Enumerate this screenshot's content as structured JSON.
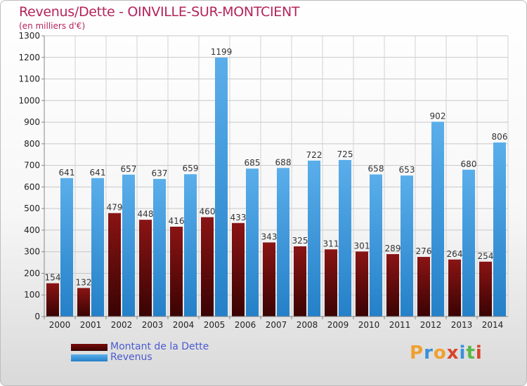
{
  "chart_data": {
    "type": "bar",
    "title": "Revenus/Dette - OINVILLE-SUR-MONTCIENT",
    "subtitle": "(en milliers d'€)",
    "categories": [
      "2000",
      "2001",
      "2002",
      "2003",
      "2004",
      "2005",
      "2006",
      "2007",
      "2008",
      "2009",
      "2010",
      "2011",
      "2012",
      "2013",
      "2014"
    ],
    "series": [
      {
        "name": "Montant de la Dette",
        "color": "#7a0a0a",
        "values": [
          154,
          132,
          479,
          448,
          416,
          460,
          433,
          343,
          325,
          311,
          301,
          289,
          276,
          264,
          254
        ]
      },
      {
        "name": "Revenus",
        "color": "#3b9be3",
        "values": [
          641,
          641,
          657,
          637,
          659,
          1199,
          685,
          688,
          722,
          725,
          658,
          653,
          902,
          680,
          806
        ]
      }
    ],
    "ylim": [
      0,
      1300
    ],
    "yticks": [
      0,
      100,
      200,
      300,
      400,
      500,
      600,
      700,
      800,
      900,
      1000,
      1100,
      1200,
      1300
    ],
    "grid": true,
    "legend": "bottom-left"
  },
  "logo": {
    "letters": [
      "P",
      "r",
      "o",
      "x",
      "i",
      "t",
      "i"
    ],
    "colors": [
      "#f0a030",
      "#3a8fd8",
      "#f0a030",
      "#d8452a",
      "#3a8fd8",
      "#58b848",
      "#d8452a"
    ]
  }
}
